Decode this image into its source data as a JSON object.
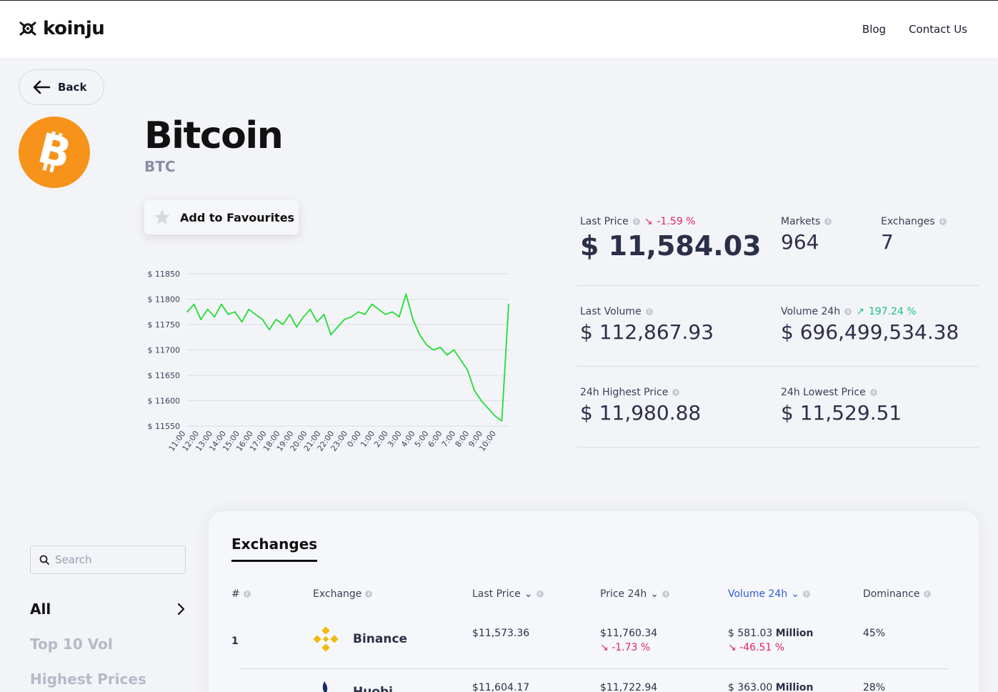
{
  "header": {
    "logo_text": "koinju",
    "nav": [
      "Blog",
      "Contact Us"
    ]
  },
  "back_label": "Back",
  "coin": {
    "name": "Bitcoin",
    "symbol": "BTC",
    "icon": "bitcoin-icon",
    "icon_color": "#f7931a"
  },
  "favourite_label": "Add to Favourites",
  "stats": {
    "last_price_label": "Last Price",
    "last_price_change": "-1.59 %",
    "last_price": "$ 11,584.03",
    "markets_label": "Markets",
    "markets": "964",
    "exchanges_label": "Exchanges",
    "exchanges": "7",
    "last_volume_label": "Last Volume",
    "last_volume": "$ 112,867.93",
    "volume_24h_label": "Volume 24h",
    "volume_24h_change": "197.24 %",
    "volume_24h": "$ 696,499,534.38",
    "high_label": "24h Highest Price",
    "high": "$ 11,980.88",
    "low_label": "24h Lowest Price",
    "low": "$ 11,529.51"
  },
  "chart_data": {
    "type": "line",
    "y_tick_labels": [
      "$ 11850",
      "$ 11800",
      "$ 11750",
      "$ 11700",
      "$ 11650",
      "$ 11600",
      "$ 11550"
    ],
    "y_ticks": [
      11850,
      11800,
      11750,
      11700,
      11650,
      11600,
      11550
    ],
    "ylim": [
      11550,
      11850
    ],
    "x_tick_labels": [
      "11:00",
      "12:00",
      "13:00",
      "14:00",
      "15:00",
      "16:00",
      "17:00",
      "18:00",
      "19:00",
      "20:00",
      "21:00",
      "22:00",
      "23:00",
      "0:00",
      "1:00",
      "2:00",
      "3:00",
      "4:00",
      "5:00",
      "6:00",
      "7:00",
      "8:00",
      "9:00",
      "10:00"
    ],
    "grid": true,
    "color": "#22dd33",
    "x": [
      "11:00",
      "11:30",
      "12:00",
      "12:30",
      "13:00",
      "13:30",
      "14:00",
      "14:30",
      "15:00",
      "15:30",
      "16:00",
      "16:30",
      "17:00",
      "17:30",
      "18:00",
      "18:30",
      "19:00",
      "19:30",
      "20:00",
      "20:30",
      "21:00",
      "21:30",
      "22:00",
      "22:30",
      "23:00",
      "23:30",
      "0:00",
      "0:30",
      "1:00",
      "1:30",
      "2:00",
      "2:30",
      "3:00",
      "3:30",
      "4:00",
      "4:30",
      "5:00",
      "5:30",
      "6:00",
      "6:30",
      "7:00",
      "7:30",
      "8:00",
      "8:30",
      "9:00",
      "9:30",
      "10:00",
      "10:20"
    ],
    "values": [
      11775,
      11790,
      11760,
      11780,
      11765,
      11790,
      11770,
      11775,
      11755,
      11780,
      11770,
      11760,
      11740,
      11760,
      11750,
      11770,
      11745,
      11765,
      11780,
      11755,
      11770,
      11730,
      11745,
      11760,
      11765,
      11775,
      11770,
      11790,
      11780,
      11770,
      11775,
      11765,
      11810,
      11760,
      11730,
      11710,
      11700,
      11705,
      11690,
      11700,
      11680,
      11660,
      11620,
      11600,
      11585,
      11570,
      11560,
      11790
    ]
  },
  "sidebar": {
    "search_placeholder": "Search",
    "categories": [
      "All",
      "Top 10 Vol",
      "Highest Prices"
    ]
  },
  "exchanges_panel": {
    "title": "Exchanges",
    "columns": [
      "#",
      "Exchange",
      "Last Price",
      "Price 24h",
      "Volume 24h",
      "Dominance"
    ],
    "rows": [
      {
        "rank": "1",
        "name": "Binance",
        "last_price": "$11,573.36",
        "price_24h": "$11,760.34",
        "price_24h_change": "-1.73 %",
        "volume_prefix": "$ 581.03",
        "volume_unit": "Million",
        "volume_change": "-46.51 %",
        "dominance": "45%"
      },
      {
        "rank": "",
        "name": "Huobi",
        "last_price": "$11,604.17",
        "price_24h": "$11,722.94",
        "volume_prefix": "$ 363.00",
        "volume_unit": "Million",
        "dominance": "28%"
      }
    ]
  }
}
